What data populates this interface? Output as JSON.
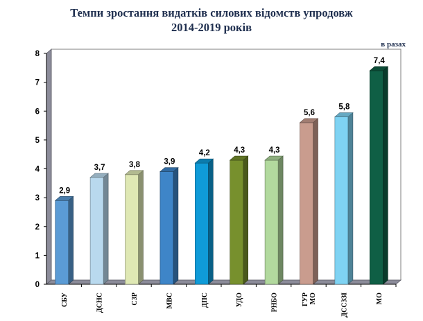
{
  "title_lines": [
    "Темпи зростання видатків силових відомств упродовж",
    "2014-2019 років"
  ],
  "chart_data": {
    "type": "bar",
    "title": "Темпи зростання видатків силових відомств упродовж 2014-2019 років",
    "unit_label": "в разах",
    "xlabel": "",
    "ylabel": "",
    "ylim": [
      0,
      8
    ],
    "yticks": [
      "0",
      "1",
      "2",
      "3",
      "4",
      "5",
      "6",
      "7",
      "8"
    ],
    "grid": false,
    "legend": "none",
    "categories": [
      "СБУ",
      "ДСНС",
      "СЗР",
      "МВС",
      "ДПС",
      "УДО",
      "РНБО",
      "ГУР МО",
      "ДССЗЗІ",
      "МО"
    ],
    "values": [
      2.9,
      3.7,
      3.8,
      3.9,
      4.2,
      4.3,
      4.3,
      5.6,
      5.8,
      7.4
    ],
    "value_labels": [
      "2,9",
      "3,7",
      "3,8",
      "3,9",
      "4,2",
      "4,3",
      "4,3",
      "5,6",
      "5,8",
      "7,4"
    ],
    "bar_colors": [
      "#5b9bd5",
      "#b9d9ee",
      "#dfe8b4",
      "#3e85c8",
      "#0f9bd8",
      "#77902d",
      "#b2d99e",
      "#c99c8e",
      "#7fd3f3",
      "#0f5f45"
    ]
  }
}
